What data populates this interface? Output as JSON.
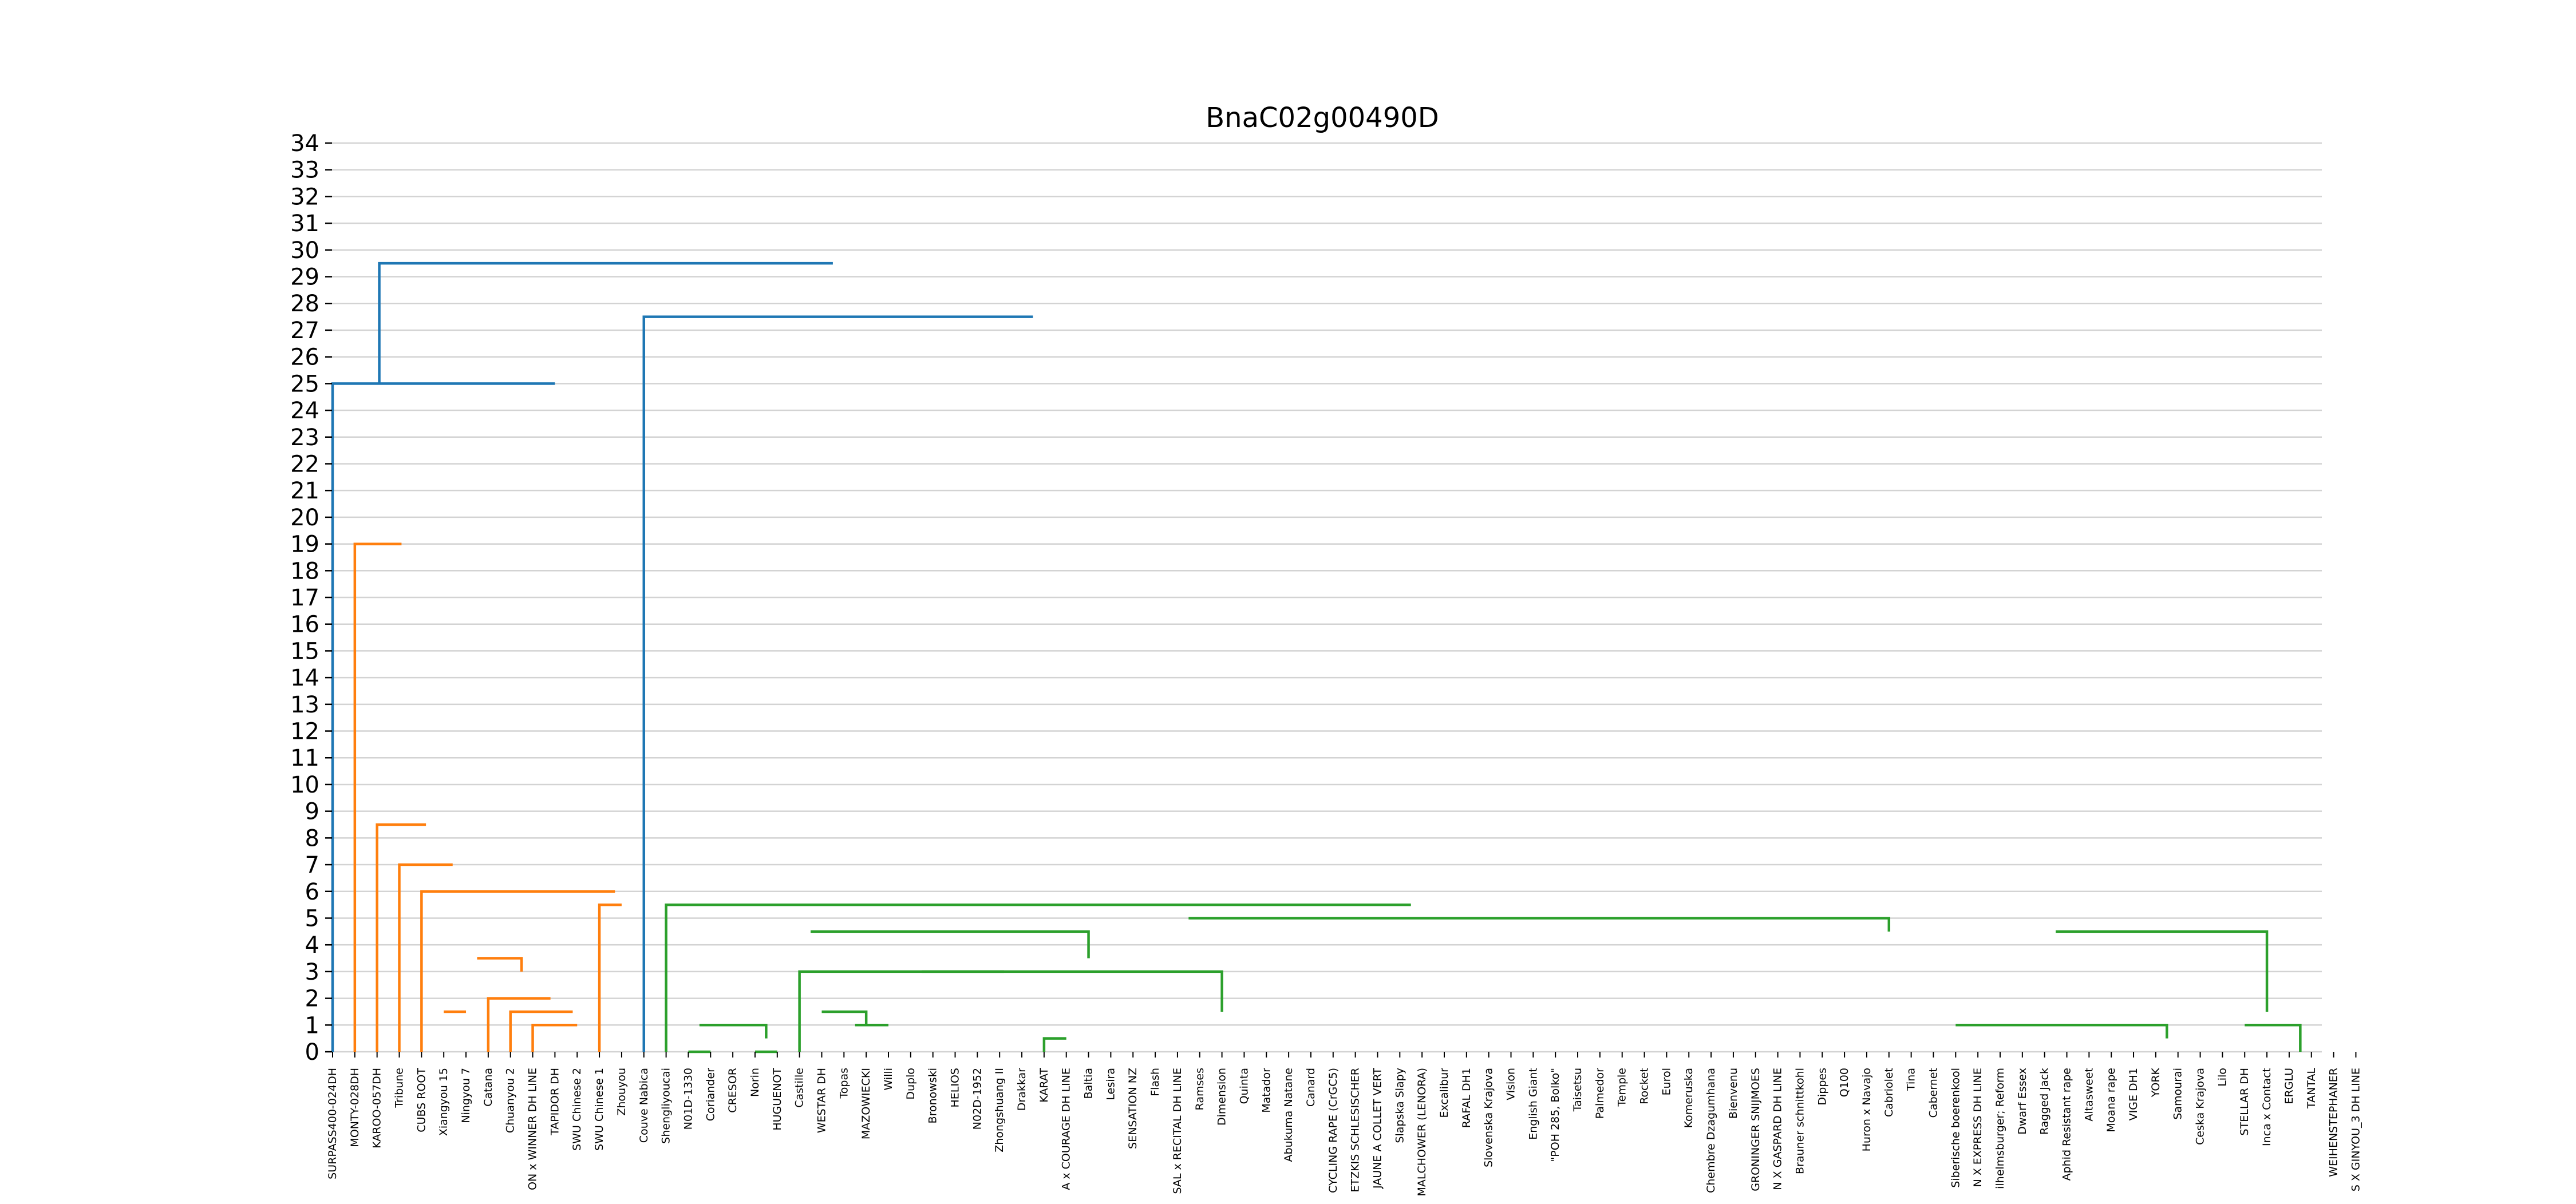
{
  "chart_data": {
    "type": "dendrogram",
    "title": "BnaC02g00490D",
    "xlabel": "",
    "ylabel": "",
    "ylim": [
      0,
      34
    ],
    "yticks": [
      0,
      1,
      2,
      3,
      4,
      5,
      6,
      7,
      8,
      9,
      10,
      11,
      12,
      13,
      14,
      15,
      16,
      17,
      18,
      19,
      20,
      21,
      22,
      23,
      24,
      25,
      26,
      27,
      28,
      29,
      30,
      31,
      32,
      33,
      34
    ],
    "grid": "horizontal",
    "colors": {
      "orange_cluster": "#ff7f0e",
      "green_cluster": "#2ca02c",
      "above_threshold": "#1f77b4",
      "grid": "#d3d3d3"
    },
    "leaves": [
      "SURPASS400-024DH",
      "MONTY-028DH",
      "KAROO-057DH",
      "Tribune",
      "CUBS ROOT",
      "Xiangyou 15",
      "Ningyou 7",
      "Catana",
      "Chuanyou 2",
      "ON x WINNER DH LINE",
      "TAPIDOR DH",
      "SWU Chinese 2",
      "SWU Chinese 1",
      "Zhouyou",
      "Couve Nabica",
      "Shengliyoucai",
      "N01D-1330",
      "Coriander",
      "CRESOR",
      "Norin",
      "HUGUENOT",
      "Castille",
      "WESTAR DH",
      "Topas",
      "MAZOWIECKI",
      "Willi",
      "Duplo",
      "Bronowski",
      "HELIOS",
      "N02D-1952",
      "Zhongshuang II",
      "Drakkar",
      "KARAT",
      "A x COURAGE DH LINE",
      "Baltia",
      "Lesira",
      "SENSATION NZ",
      "Flash",
      "SAL x RECITAL DH LINE",
      "Ramses",
      "Dimension",
      "Quinta",
      "Matador",
      "Abukuma Natane",
      "Canard",
      "CYCLING RAPE (CrGC5)",
      "ETZKIS SCHLESISCHER",
      "JAUNE A COLLET VERT",
      "Slapska Slapy",
      "MALCHOWER (LENORA)",
      "Excalibur",
      "RAFAL DH1",
      "Slovenska Krajova",
      "Vision",
      "English Giant",
      "\"POH 285, Bolko\"",
      "Taisetsu",
      "Palmedor",
      "Temple",
      "Rocket",
      "Eurol",
      "Komeruska",
      "Chembre Dzagumhana",
      "Bienvenu",
      "GRONINGER SNIJMOES",
      "N X GASPARD DH LINE",
      "Brauner schnittkohl",
      "Dippes",
      "Q100",
      "Huron x Navajo",
      "Cabriolet",
      "Tina",
      "Cabernet",
      "Siberische boerenkool",
      "N X EXPRESS DH LINE",
      "ilhelmsburger; Reform",
      "Dwarf Essex",
      "Ragged Jack",
      "Aphid Resistant rape",
      "Altasweet",
      "Moana rape",
      "VIGE DH1",
      "YORK",
      "Samourai",
      "Ceska Krajova",
      "Lilo",
      "STELLAR DH",
      "Inca x Contact",
      "ERGLU",
      "TANTAL",
      "WEIHENSTEPHANER",
      "S X GINYOU_3 DH LINE"
    ],
    "links": [
      {
        "x": [
          0,
          10
        ],
        "y": [
          0,
          25
        ],
        "color": "#1f77b4"
      },
      {
        "x": [
          1,
          3.1
        ],
        "y": [
          0,
          19
        ],
        "color": "#ff7f0e"
      },
      {
        "x": [
          2,
          4.2
        ],
        "y": [
          0,
          8.5
        ],
        "color": "#ff7f0e"
      },
      {
        "x": [
          3,
          5.4
        ],
        "y": [
          0,
          7
        ],
        "color": "#ff7f0e"
      },
      {
        "x": [
          4,
          12.7
        ],
        "y": [
          0,
          6
        ],
        "color": "#ff7f0e"
      },
      {
        "x": [
          6.5,
          8.5
        ],
        "y": [
          3.5,
          3
        ],
        "color": "#ff7f0e"
      },
      {
        "x": [
          5,
          6
        ],
        "y": [
          1.5,
          1.5
        ],
        "color": "#ff7f0e"
      },
      {
        "x": [
          7,
          9.8
        ],
        "y": [
          0,
          2
        ],
        "color": "#ff7f0e"
      },
      {
        "x": [
          8,
          10.8
        ],
        "y": [
          0,
          1.5
        ],
        "color": "#ff7f0e"
      },
      {
        "x": [
          9,
          11
        ],
        "y": [
          0,
          1
        ],
        "color": "#ff7f0e"
      },
      {
        "x": [
          12,
          13
        ],
        "y": [
          0,
          5.5
        ],
        "color": "#ff7f0e"
      },
      {
        "x": [
          14,
          31.5
        ],
        "y": [
          0,
          27.5
        ],
        "color": "#1f77b4"
      },
      {
        "x": [
          2.1,
          22.5
        ],
        "y": [
          25,
          29.5
        ],
        "color": "#1f77b4"
      },
      {
        "x": [
          15,
          48.5
        ],
        "y": [
          0,
          5.5
        ],
        "color": "#2ca02c"
      },
      {
        "x": [
          21.5,
          34
        ],
        "y": [
          4.5,
          3.5
        ],
        "color": "#2ca02c"
      },
      {
        "x": [
          16.5,
          19.5
        ],
        "y": [
          1,
          0.5
        ],
        "color": "#2ca02c"
      },
      {
        "x": [
          16,
          17
        ],
        "y": [
          0,
          0
        ],
        "color": "#2ca02c"
      },
      {
        "x": [
          19,
          20
        ],
        "y": [
          0,
          0
        ],
        "color": "#2ca02c"
      },
      {
        "x": [
          21,
          30.2
        ],
        "y": [
          0,
          3
        ],
        "color": "#2ca02c"
      },
      {
        "x": [
          23.5,
          25
        ],
        "y": [
          1,
          1
        ],
        "color": "#2ca02c"
      },
      {
        "x": [
          22,
          24
        ],
        "y": [
          1.5,
          1
        ],
        "color": "#2ca02c"
      },
      {
        "x": [
          26.5,
          40
        ],
        "y": [
          3,
          1.5
        ],
        "color": "#2ca02c"
      },
      {
        "x": [
          32,
          33
        ],
        "y": [
          0,
          0.5
        ],
        "color": "#2ca02c"
      },
      {
        "x": [
          38.5,
          70
        ],
        "y": [
          5,
          4.5
        ],
        "color": "#2ca02c"
      },
      {
        "x": [
          77.5,
          87
        ],
        "y": [
          4.5,
          1.5
        ],
        "color": "#2ca02c"
      },
      {
        "x": [
          73,
          82.5
        ],
        "y": [
          1,
          0.5
        ],
        "color": "#2ca02c"
      },
      {
        "x": [
          86,
          88.5
        ],
        "y": [
          1,
          0
        ],
        "color": "#2ca02c"
      }
    ]
  }
}
